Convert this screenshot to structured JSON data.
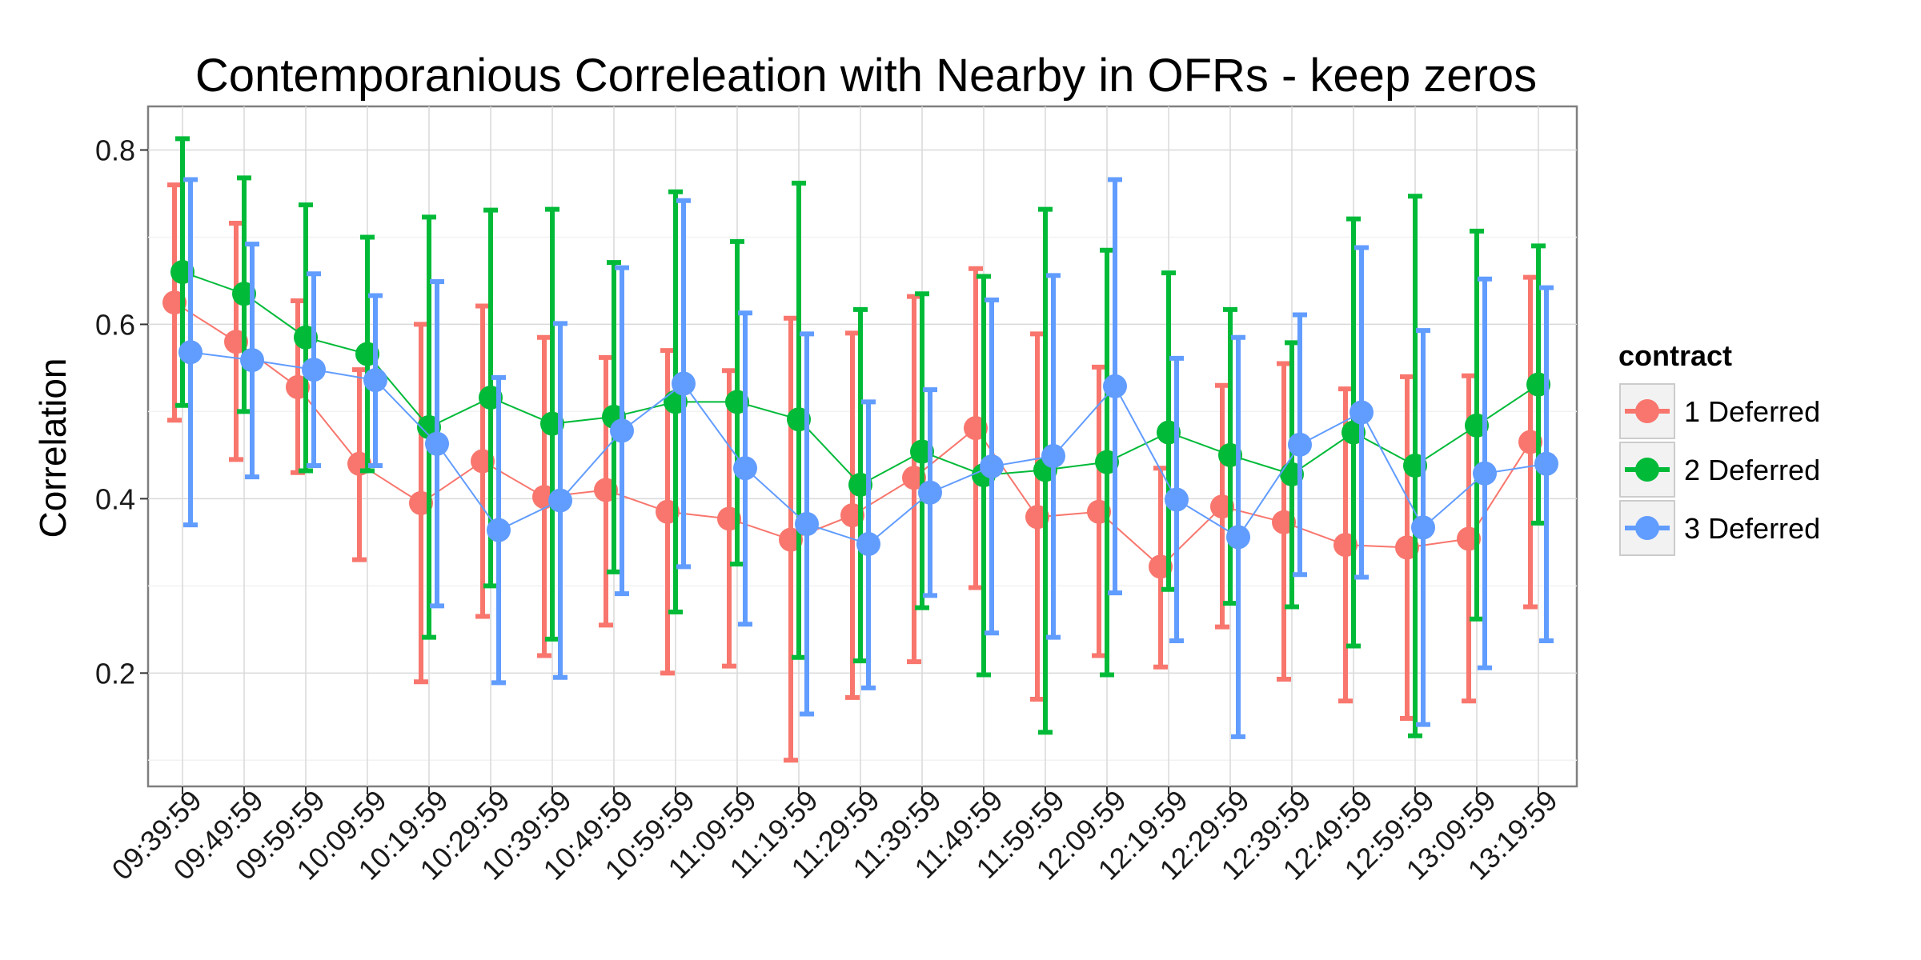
{
  "chart_data": {
    "type": "line",
    "title": "Contemporanious Correleation with Nearby in OFRs - keep zeros",
    "xlabel": "",
    "ylabel": "Correlation",
    "x": [
      "09:39:59",
      "09:49:59",
      "09:59:59",
      "10:09:59",
      "10:19:59",
      "10:29:59",
      "10:39:59",
      "10:49:59",
      "10:59:59",
      "11:09:59",
      "11:19:59",
      "11:29:59",
      "11:39:59",
      "11:49:59",
      "11:59:59",
      "12:09:59",
      "12:19:59",
      "12:29:59",
      "12:39:59",
      "12:49:59",
      "12:59:59",
      "13:09:59",
      "13:19:59"
    ],
    "yticks": [
      "0.2",
      "0.4",
      "0.6",
      "0.8"
    ],
    "ylim": [
      0.07,
      0.85
    ],
    "grid": true,
    "error_bars": true,
    "legend": {
      "title": "contract",
      "position": "right"
    },
    "series": [
      {
        "name": "1 Deferred",
        "color": "#F8766D",
        "values": [
          0.625,
          0.58,
          0.528,
          0.44,
          0.395,
          0.443,
          0.402,
          0.41,
          0.385,
          0.377,
          0.353,
          0.381,
          0.424,
          0.481,
          0.379,
          0.385,
          0.322,
          0.391,
          0.373,
          0.347,
          0.344,
          0.354,
          0.465
        ],
        "lower": [
          0.49,
          0.445,
          0.43,
          0.33,
          0.19,
          0.265,
          0.22,
          0.255,
          0.2,
          0.208,
          0.1,
          0.172,
          0.213,
          0.298,
          0.17,
          0.22,
          0.207,
          0.253,
          0.193,
          0.168,
          0.148,
          0.168,
          0.276
        ],
        "upper": [
          0.76,
          0.716,
          0.627,
          0.548,
          0.6,
          0.621,
          0.585,
          0.562,
          0.57,
          0.547,
          0.607,
          0.59,
          0.632,
          0.664,
          0.589,
          0.551,
          0.435,
          0.53,
          0.555,
          0.526,
          0.54,
          0.541,
          0.654
        ]
      },
      {
        "name": "2 Deferred",
        "color": "#00BA38",
        "values": [
          0.66,
          0.635,
          0.585,
          0.566,
          0.482,
          0.516,
          0.486,
          0.494,
          0.511,
          0.511,
          0.491,
          0.416,
          0.454,
          0.427,
          0.433,
          0.442,
          0.476,
          0.45,
          0.428,
          0.476,
          0.438,
          0.484,
          0.531
        ],
        "lower": [
          0.507,
          0.5,
          0.432,
          0.432,
          0.241,
          0.3,
          0.239,
          0.316,
          0.27,
          0.325,
          0.218,
          0.214,
          0.275,
          0.198,
          0.132,
          0.198,
          0.296,
          0.28,
          0.276,
          0.231,
          0.128,
          0.262,
          0.372
        ],
        "upper": [
          0.813,
          0.768,
          0.737,
          0.7,
          0.723,
          0.731,
          0.732,
          0.671,
          0.752,
          0.695,
          0.762,
          0.617,
          0.635,
          0.655,
          0.732,
          0.685,
          0.659,
          0.617,
          0.579,
          0.721,
          0.747,
          0.707,
          0.69
        ]
      },
      {
        "name": "3 Deferred",
        "color": "#619CFF",
        "values": [
          0.568,
          0.559,
          0.548,
          0.536,
          0.463,
          0.364,
          0.398,
          0.478,
          0.532,
          0.435,
          0.371,
          0.348,
          0.407,
          0.437,
          0.449,
          0.529,
          0.399,
          0.356,
          0.462,
          0.499,
          0.367,
          0.429,
          0.44
        ],
        "lower": [
          0.37,
          0.425,
          0.438,
          0.438,
          0.277,
          0.189,
          0.195,
          0.291,
          0.322,
          0.256,
          0.153,
          0.183,
          0.289,
          0.246,
          0.241,
          0.292,
          0.237,
          0.127,
          0.313,
          0.31,
          0.141,
          0.206,
          0.237
        ],
        "upper": [
          0.766,
          0.692,
          0.658,
          0.633,
          0.649,
          0.539,
          0.601,
          0.665,
          0.742,
          0.613,
          0.589,
          0.511,
          0.525,
          0.628,
          0.656,
          0.766,
          0.561,
          0.585,
          0.611,
          0.688,
          0.593,
          0.652,
          0.642
        ]
      }
    ]
  }
}
